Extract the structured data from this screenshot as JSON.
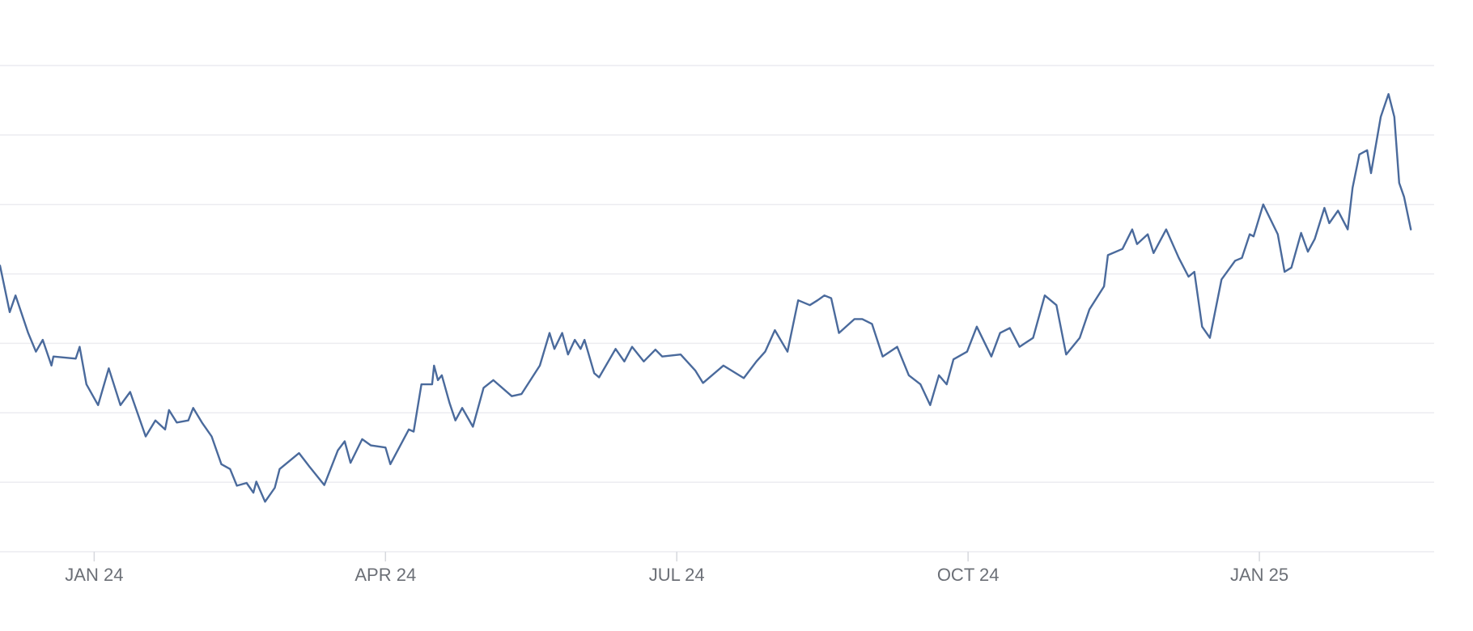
{
  "chart_data": {
    "type": "line",
    "x": [
      -0.97,
      -0.87,
      -0.81,
      -0.68,
      -0.6,
      -0.53,
      -0.44,
      -0.42,
      -0.19,
      -0.15,
      -0.08,
      0.04,
      0.15,
      0.27,
      0.37,
      0.53,
      0.63,
      0.73,
      0.77,
      0.85,
      0.97,
      1.02,
      1.11,
      1.21,
      1.31,
      1.4,
      1.47,
      1.57,
      1.64,
      1.67,
      1.76,
      1.86,
      1.91,
      2.11,
      2.22,
      2.37,
      2.51,
      2.58,
      2.64,
      2.76,
      2.85,
      3.0,
      3.05,
      3.24,
      3.29,
      3.37,
      3.48,
      3.5,
      3.54,
      3.58,
      3.66,
      3.72,
      3.79,
      3.9,
      4.01,
      4.11,
      4.3,
      4.4,
      4.59,
      4.69,
      4.74,
      4.82,
      4.88,
      4.95,
      5.01,
      5.05,
      5.15,
      5.2,
      5.37,
      5.46,
      5.54,
      5.66,
      5.78,
      5.85,
      6.04,
      6.19,
      6.27,
      6.48,
      6.69,
      6.82,
      6.91,
      7.01,
      7.14,
      7.25,
      7.37,
      7.45,
      7.52,
      7.59,
      7.67,
      7.83,
      7.91,
      8.01,
      8.12,
      8.27,
      8.39,
      8.51,
      8.61,
      8.7,
      8.78,
      8.85,
      8.99,
      9.09,
      9.24,
      9.33,
      9.43,
      9.53,
      9.67,
      9.79,
      9.91,
      10.01,
      10.15,
      10.25,
      10.4,
      10.44,
      10.59,
      10.69,
      10.74,
      10.85,
      10.91,
      11.04,
      11.17,
      11.27,
      11.33,
      11.41,
      11.49,
      11.61,
      11.75,
      11.82,
      11.9,
      11.94,
      12.04,
      12.19,
      12.26,
      12.33,
      12.43,
      12.5,
      12.57,
      12.67,
      12.72,
      12.81,
      12.91,
      12.96,
      13.03,
      13.11,
      13.15,
      13.25,
      13.33,
      13.39,
      13.44,
      13.49,
      13.56
    ],
    "series": [
      {
        "color": "#4a6a9c",
        "values": [
          4.12,
          3.45,
          3.69,
          3.15,
          2.88,
          3.05,
          2.68,
          2.81,
          2.78,
          2.95,
          2.41,
          2.11,
          2.64,
          2.11,
          2.3,
          1.66,
          1.89,
          1.76,
          2.04,
          1.86,
          1.89,
          2.07,
          1.86,
          1.66,
          1.26,
          1.19,
          0.95,
          0.99,
          0.85,
          1.01,
          0.72,
          0.92,
          1.19,
          1.42,
          1.22,
          0.96,
          1.46,
          1.59,
          1.28,
          1.62,
          1.53,
          1.5,
          1.26,
          1.76,
          1.73,
          2.41,
          2.41,
          2.68,
          2.47,
          2.54,
          2.14,
          1.89,
          2.07,
          1.8,
          2.36,
          2.47,
          2.24,
          2.27,
          2.68,
          3.15,
          2.92,
          3.15,
          2.84,
          3.05,
          2.92,
          3.05,
          2.57,
          2.51,
          2.92,
          2.74,
          2.95,
          2.74,
          2.91,
          2.81,
          2.84,
          2.61,
          2.43,
          2.68,
          2.5,
          2.74,
          2.88,
          3.19,
          2.88,
          3.62,
          3.55,
          3.62,
          3.69,
          3.65,
          3.15,
          3.35,
          3.35,
          3.28,
          2.81,
          2.95,
          2.54,
          2.41,
          2.11,
          2.54,
          2.41,
          2.77,
          2.88,
          3.24,
          2.81,
          3.15,
          3.22,
          2.95,
          3.08,
          3.69,
          3.55,
          2.84,
          3.08,
          3.49,
          3.82,
          4.27,
          4.36,
          4.64,
          4.43,
          4.57,
          4.3,
          4.64,
          4.23,
          3.96,
          4.03,
          3.24,
          3.08,
          3.92,
          4.19,
          4.23,
          4.57,
          4.54,
          5.0,
          4.57,
          4.03,
          4.09,
          4.59,
          4.32,
          4.5,
          4.95,
          4.73,
          4.91,
          4.64,
          5.24,
          5.72,
          5.78,
          5.45,
          6.26,
          6.59,
          6.26,
          5.31,
          5.11,
          4.64
        ]
      }
    ],
    "xlim": [
      -0.97,
      13.8
    ],
    "xticks": [
      {
        "value": 0,
        "label": "JAN 24"
      },
      {
        "value": 3,
        "label": "APR 24"
      },
      {
        "value": 6,
        "label": "JUL 24"
      },
      {
        "value": 9,
        "label": "OCT 24"
      },
      {
        "value": 12,
        "label": "JAN 25"
      }
    ],
    "ylim": [
      0,
      7
    ],
    "yticks": [
      0,
      1,
      2,
      3,
      4,
      5,
      6,
      7
    ],
    "grid": true
  }
}
